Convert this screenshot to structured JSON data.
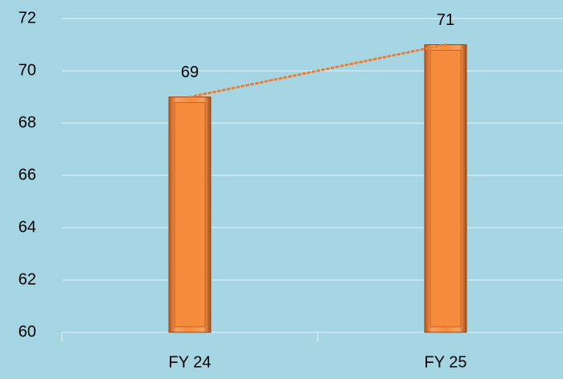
{
  "chart_data": {
    "type": "bar",
    "categories": [
      "FY 24",
      "FY 25"
    ],
    "values": [
      69,
      71
    ],
    "color": "#f58b3d",
    "ylim": [
      60,
      72
    ],
    "yticks": [
      60,
      62,
      64,
      66,
      68,
      70,
      72
    ],
    "grid": true,
    "trendline": true,
    "trendline_color": "#ed7d31"
  }
}
